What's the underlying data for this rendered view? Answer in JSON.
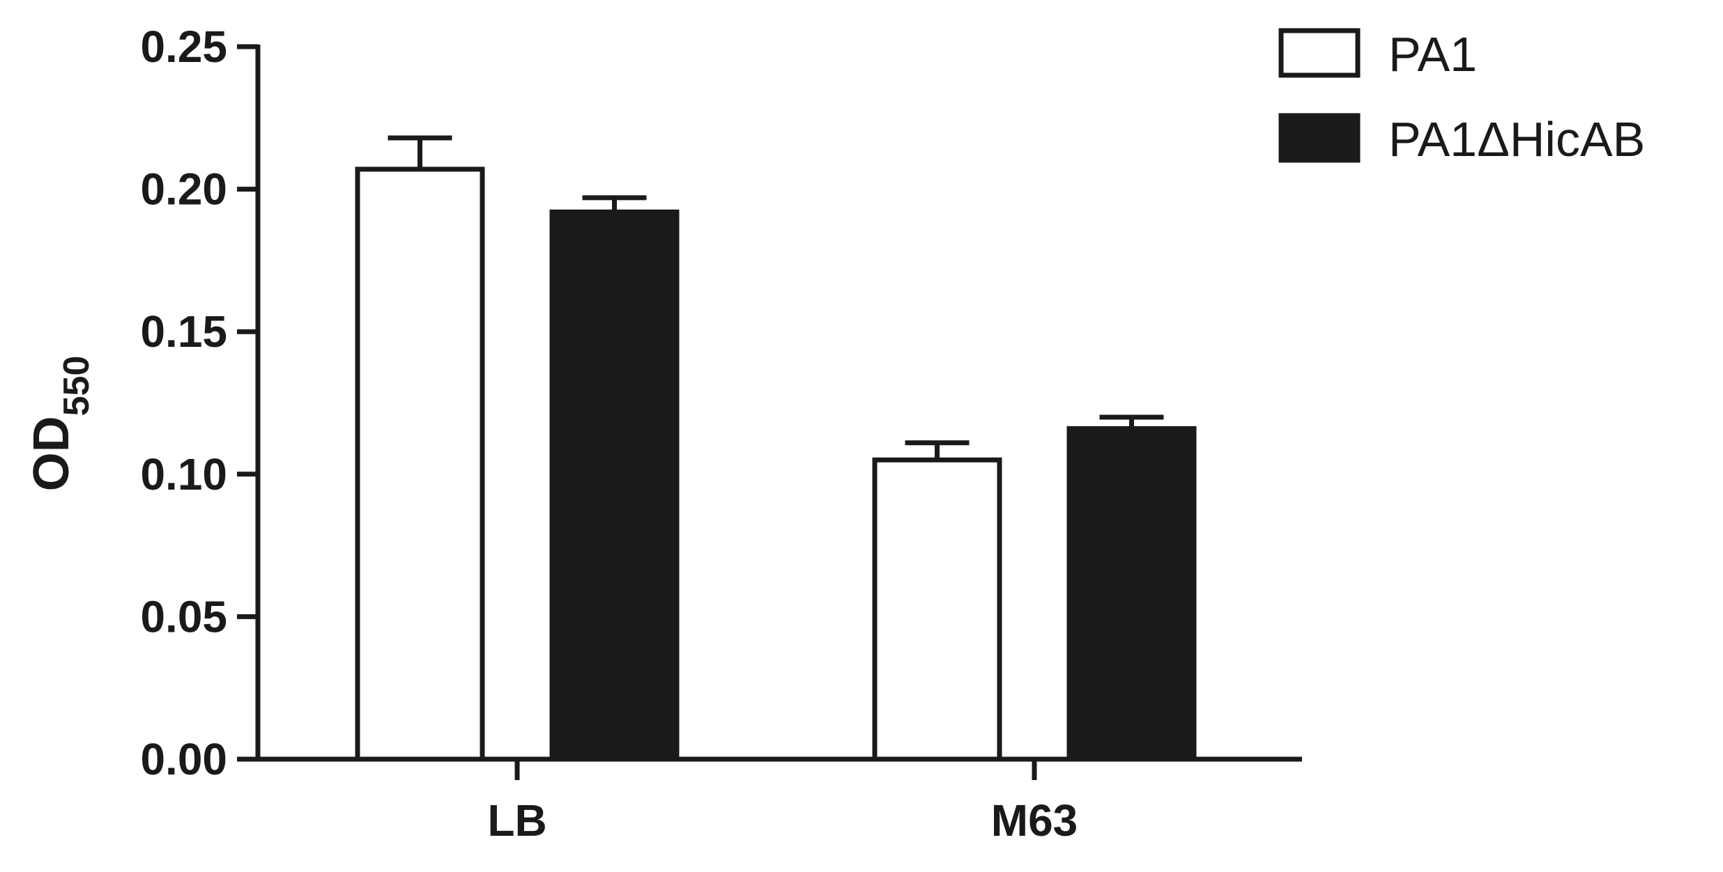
{
  "chart_data": {
    "type": "bar",
    "categories": [
      "LB",
      "M63"
    ],
    "series": [
      {
        "name": "PA1",
        "values": [
          0.207,
          0.105
        ],
        "errors": [
          0.011,
          0.006
        ],
        "fill": "#ffffff",
        "stroke": "#1a1a1a"
      },
      {
        "name": "PA1ΔHicAB",
        "values": [
          0.192,
          0.116
        ],
        "errors": [
          0.005,
          0.004
        ],
        "fill": "#1a1a1a",
        "stroke": "#1a1a1a"
      }
    ],
    "ylabel": "OD",
    "ylabel_sub": "550",
    "xlabel": "",
    "ylim": [
      0,
      0.25
    ],
    "yticks": [
      "0.00",
      "0.05",
      "0.10",
      "0.15",
      "0.20",
      "0.25"
    ],
    "error_bars": "upper",
    "grid": false,
    "legend_position": "top-right"
  }
}
